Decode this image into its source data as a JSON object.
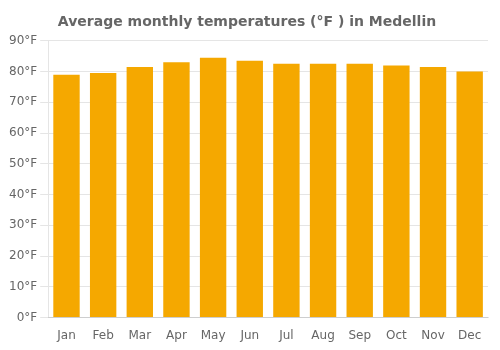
{
  "chart_data": {
    "type": "bar",
    "title": "Average monthly temperatures (°F ) in Medellin",
    "categories": [
      "Jan",
      "Feb",
      "Mar",
      "Apr",
      "May",
      "Jun",
      "Jul",
      "Aug",
      "Sep",
      "Oct",
      "Nov",
      "Dec"
    ],
    "values": [
      79.0,
      79.5,
      81.5,
      83.0,
      84.5,
      83.5,
      82.5,
      82.5,
      82.5,
      82.0,
      81.5,
      80.0
    ],
    "color": "#F5A800",
    "ylim": [
      0,
      90
    ],
    "yticks": [
      {
        "value": 0,
        "label": "0°F"
      },
      {
        "value": 10,
        "label": "10°F"
      },
      {
        "value": 20,
        "label": "20°F"
      },
      {
        "value": 30,
        "label": "30°F"
      },
      {
        "value": 40,
        "label": "40°F"
      },
      {
        "value": 50,
        "label": "50°F"
      },
      {
        "value": 60,
        "label": "60°F"
      },
      {
        "value": 70,
        "label": "70°F"
      },
      {
        "value": 80,
        "label": "80°F"
      },
      {
        "value": 90,
        "label": "90°F"
      }
    ],
    "grid": true
  }
}
